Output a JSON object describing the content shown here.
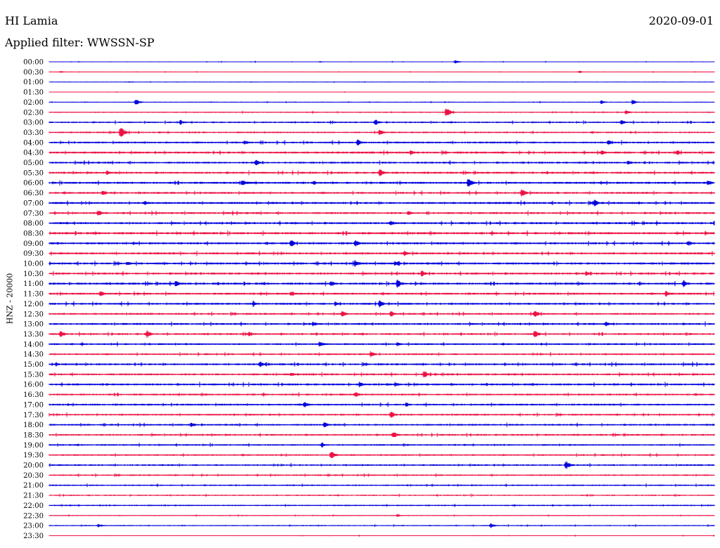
{
  "header": {
    "station": "HI Lamia",
    "date": "2020-09-01",
    "filter": "Applied filter: WWSSN-SP"
  },
  "colors": {
    "even_row": "#0000dd",
    "odd_row": "#ee1144"
  },
  "chart_data": {
    "type": "line",
    "title": "HI Lamia",
    "ylabel": "HNZ - 20000",
    "y_tick_labels": [
      "00:00",
      "00:30",
      "01:00",
      "01:30",
      "02:00",
      "02:30",
      "03:00",
      "03:30",
      "04:00",
      "04:30",
      "05:00",
      "05:30",
      "06:00",
      "06:30",
      "07:00",
      "07:30",
      "08:00",
      "08:30",
      "09:00",
      "09:30",
      "10:00",
      "10:30",
      "11:00",
      "11:30",
      "12:00",
      "12:30",
      "13:00",
      "13:30",
      "14:00",
      "14:30",
      "15:00",
      "15:30",
      "16:00",
      "16:30",
      "17:00",
      "17:30",
      "18:00",
      "18:30",
      "19:00",
      "19:30",
      "20:00",
      "20:30",
      "21:00",
      "21:30",
      "22:00",
      "22:30",
      "23:00",
      "23:30"
    ],
    "row_minutes": 30,
    "x_range_min": [
      0,
      30
    ],
    "noise_level": [
      0.4,
      0.35,
      0.3,
      0.3,
      0.45,
      0.6,
      0.75,
      0.8,
      0.9,
      1.0,
      0.9,
      0.95,
      1.0,
      0.95,
      1.0,
      0.95,
      1.0,
      1.1,
      1.0,
      1.0,
      1.05,
      1.0,
      1.0,
      1.0,
      0.95,
      0.9,
      0.95,
      0.9,
      0.9,
      0.85,
      0.95,
      0.95,
      0.95,
      0.9,
      0.9,
      0.85,
      0.85,
      0.85,
      0.8,
      0.8,
      0.8,
      0.75,
      0.7,
      0.65,
      0.7,
      0.5,
      0.55,
      0.4
    ],
    "events": [
      [
        [
          18.3,
          3
        ],
        [
          12.2,
          1.5
        ]
      ],
      [
        [
          0.5,
          2
        ],
        [
          23.9,
          2
        ]
      ],
      [
        [
          3.6,
          1
        ]
      ],
      [],
      [
        [
          3.9,
          5
        ],
        [
          26.3,
          4
        ],
        [
          24.9,
          3
        ]
      ],
      [
        [
          17.9,
          8
        ],
        [
          26.0,
          4
        ]
      ],
      [
        [
          5.9,
          4
        ],
        [
          14.7,
          5
        ],
        [
          25.8,
          4
        ]
      ],
      [
        [
          3.2,
          10
        ],
        [
          14.9,
          5
        ]
      ],
      [
        [
          8.8,
          4
        ],
        [
          13.9,
          5
        ],
        [
          25.2,
          4
        ]
      ],
      [
        [
          16.3,
          4
        ],
        [
          24.9,
          4
        ],
        [
          28.3,
          4
        ]
      ],
      [
        [
          9.3,
          5
        ],
        [
          26.1,
          4
        ]
      ],
      [
        [
          2.6,
          4
        ],
        [
          14.9,
          7
        ]
      ],
      [
        [
          8.7,
          6
        ],
        [
          11.9,
          4
        ],
        [
          18.9,
          9
        ],
        [
          29.7,
          5
        ]
      ],
      [
        [
          2.4,
          4
        ],
        [
          21.3,
          7
        ]
      ],
      [
        [
          4.3,
          4
        ],
        [
          24.6,
          6
        ]
      ],
      [
        [
          2.2,
          5
        ],
        [
          16.2,
          4
        ]
      ],
      [
        [
          15.4,
          5
        ],
        [
          30.0,
          6
        ]
      ],
      [],
      [
        [
          10.9,
          6
        ],
        [
          13.8,
          6
        ],
        [
          28.8,
          5
        ]
      ],
      [
        [
          16.0,
          5
        ]
      ],
      [
        [
          3.5,
          4
        ],
        [
          13.8,
          6
        ],
        [
          15.6,
          5
        ]
      ],
      [
        [
          16.8,
          5
        ],
        [
          24.2,
          4
        ]
      ],
      [
        [
          5.7,
          5
        ],
        [
          12.7,
          5
        ],
        [
          15.7,
          7
        ],
        [
          28.6,
          6
        ]
      ],
      [
        [
          2.3,
          5
        ],
        [
          10.9,
          5
        ],
        [
          27.8,
          5
        ]
      ],
      [
        [
          9.2,
          5
        ],
        [
          12.9,
          4
        ],
        [
          14.9,
          6
        ]
      ],
      [
        [
          13.2,
          5
        ],
        [
          15.4,
          5
        ],
        [
          21.9,
          6
        ]
      ],
      [
        [
          11.9,
          4
        ],
        [
          25.1,
          4
        ]
      ],
      [
        [
          0.5,
          6
        ],
        [
          4.4,
          6
        ],
        [
          9.0,
          4
        ],
        [
          21.9,
          6
        ]
      ],
      [
        [
          12.2,
          5
        ],
        [
          15.7,
          4
        ]
      ],
      [
        [
          14.5,
          5
        ]
      ],
      [
        [
          0.3,
          3
        ],
        [
          9.5,
          5
        ]
      ],
      [
        [
          10.9,
          4
        ],
        [
          16.9,
          6
        ]
      ],
      [
        [
          14.0,
          5
        ],
        [
          15.6,
          4
        ]
      ],
      [
        [
          13.8,
          5
        ]
      ],
      [
        [
          11.5,
          5
        ],
        [
          16.1,
          4
        ]
      ],
      [
        [
          15.4,
          6
        ]
      ],
      [
        [
          6.4,
          4
        ],
        [
          12.4,
          5
        ]
      ],
      [
        [
          15.5,
          6
        ]
      ],
      [
        [
          12.3,
          4
        ]
      ],
      [
        [
          12.7,
          7
        ]
      ],
      [
        [
          23.3,
          7
        ]
      ],
      [],
      [],
      [],
      [],
      [
        [
          15.7,
          3
        ]
      ],
      [
        [
          2.2,
          3
        ],
        [
          19.9,
          4
        ]
      ],
      []
    ]
  }
}
